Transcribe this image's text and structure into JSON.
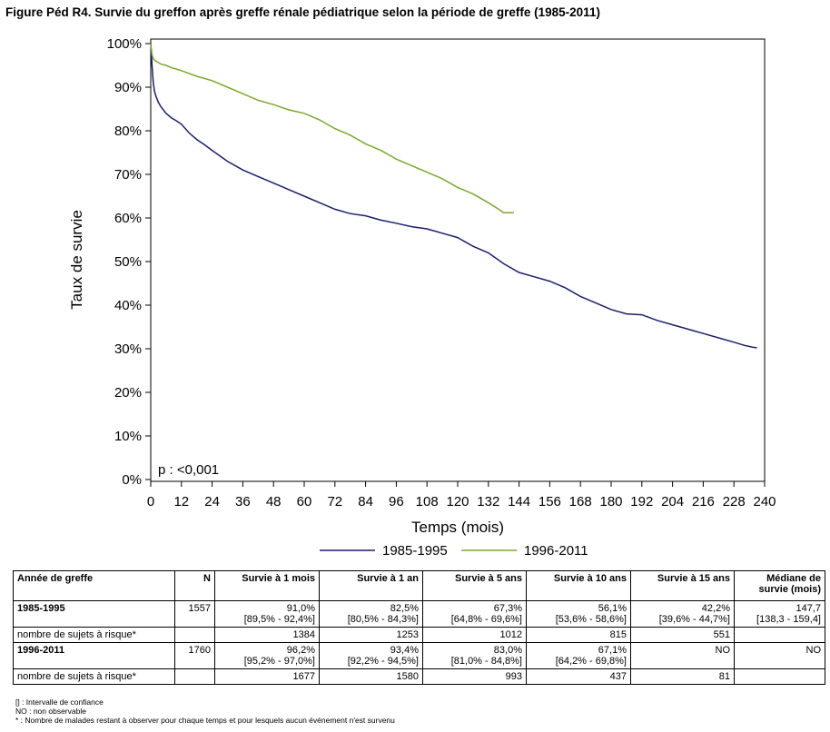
{
  "figure_title": "Figure Péd R4. Survie du greffon après greffe rénale pédiatrique selon la période de greffe (1985-2011)",
  "colors": {
    "series_1": "#1a1f6e",
    "series_2": "#7aaa2a",
    "axis": "#000000"
  },
  "chart_data": {
    "type": "line",
    "title": "",
    "xlabel": "Temps (mois)",
    "ylabel": "Taux de survie",
    "xlim": [
      0,
      240
    ],
    "ylim": [
      0,
      100
    ],
    "xticks": [
      "0",
      "12",
      "24",
      "36",
      "48",
      "60",
      "72",
      "84",
      "96",
      "108",
      "120",
      "132",
      "144",
      "156",
      "168",
      "180",
      "192",
      "204",
      "216",
      "228",
      "240"
    ],
    "yticks": [
      "0%",
      "10%",
      "20%",
      "30%",
      "40%",
      "50%",
      "60%",
      "70%",
      "80%",
      "90%",
      "100%"
    ],
    "annotation": "p : <0,001",
    "legend_position": "bottom",
    "grid": false,
    "series": [
      {
        "name": "1985-1995",
        "x": [
          0,
          0.5,
          1,
          1.5,
          2,
          3,
          4,
          6,
          8,
          10,
          12,
          15,
          18,
          21,
          24,
          30,
          36,
          42,
          48,
          54,
          60,
          66,
          72,
          78,
          84,
          90,
          96,
          102,
          108,
          114,
          120,
          126,
          132,
          138,
          144,
          150,
          156,
          162,
          168,
          174,
          180,
          186,
          192,
          198,
          204,
          210,
          216,
          222,
          228,
          232,
          235,
          237
        ],
        "y": [
          100,
          95,
          91,
          89,
          88,
          86.5,
          85.5,
          84,
          83,
          82.3,
          81.5,
          79.5,
          78,
          76.8,
          75.5,
          73,
          71,
          69.5,
          68,
          66.5,
          65,
          63.5,
          62,
          61,
          60.5,
          59.5,
          58.8,
          58,
          57.5,
          56.5,
          55.5,
          53.5,
          52,
          49.5,
          47.5,
          46.5,
          45.5,
          44,
          42,
          40.5,
          39,
          38,
          37.8,
          36.5,
          35.5,
          34.5,
          33.5,
          32.5,
          31.5,
          30.8,
          30.4,
          30.2
        ]
      },
      {
        "name": "1996-2011",
        "x": [
          0,
          0.5,
          1,
          2,
          4,
          6,
          8,
          12,
          18,
          24,
          30,
          36,
          42,
          48,
          54,
          60,
          66,
          72,
          78,
          84,
          90,
          96,
          102,
          108,
          114,
          120,
          126,
          132,
          136,
          138,
          140,
          142
        ],
        "y": [
          100,
          97.5,
          96.5,
          96,
          95.3,
          95,
          94.5,
          93.8,
          92.5,
          91.5,
          90,
          88.5,
          87,
          86,
          84.8,
          84,
          82.5,
          80.5,
          79,
          77,
          75.5,
          73.5,
          72,
          70.5,
          69,
          67,
          65.5,
          63.5,
          62,
          61.2,
          61.2,
          61.2
        ]
      }
    ]
  },
  "table": {
    "headers": [
      "Année de greffe",
      "N",
      "Survie à 1 mois",
      "Survie à 1 an",
      "Survie à 5 ans",
      "Survie à 10 ans",
      "Survie à 15 ans",
      "Médiane de survie (mois)"
    ],
    "rows": [
      {
        "label": "1985-1995",
        "n": "1557",
        "values": [
          "91,0%",
          "82,5%",
          "67,3%",
          "56,1%",
          "42,2%",
          "147,7"
        ],
        "ci": [
          "[89,5% - 92,4%]",
          "[80,5% - 84,3%]",
          "[64,8% - 69,6%]",
          "[53,6% - 58,6%]",
          "[39,6% - 44,7%]",
          "[138,3 - 159,4]"
        ]
      },
      {
        "label": "nombre de sujets à risque*",
        "n": "",
        "values": [
          "1384",
          "1253",
          "1012",
          "815",
          "551",
          ""
        ]
      },
      {
        "label": "1996-2011",
        "n": "1760",
        "values": [
          "96,2%",
          "93,4%",
          "83,0%",
          "67,1%",
          "NO",
          "NO"
        ],
        "ci": [
          "[95,2% - 97,0%]",
          "[92,2% - 94,5%]",
          "[81,0% - 84,8%]",
          "[64,2% - 69,8%]",
          "",
          ""
        ]
      },
      {
        "label": "nombre de sujets à risque*",
        "n": "",
        "values": [
          "1677",
          "1580",
          "993",
          "437",
          "81",
          ""
        ]
      }
    ]
  },
  "notes": [
    "[] : Intervalle de confiance",
    "NO : non observable",
    "* : Nombre de malades restant à observer pour chaque temps et pour lesquels aucun événement n'est survenu"
  ]
}
